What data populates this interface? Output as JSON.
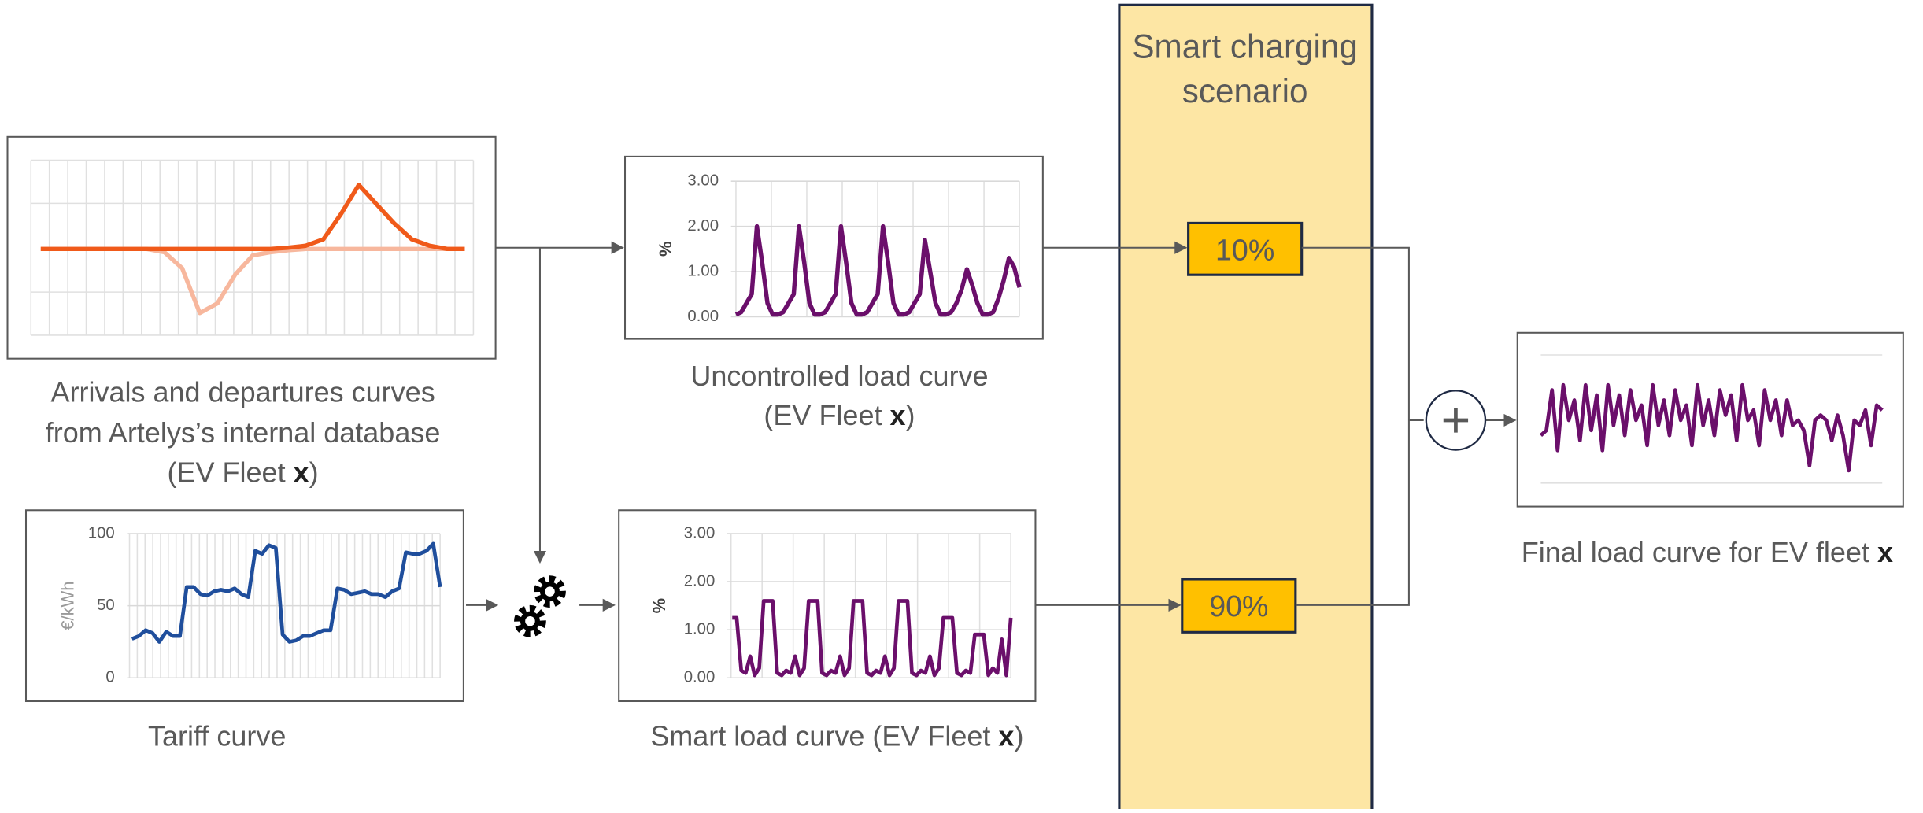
{
  "scenario": {
    "title_lines": [
      "Smart charging",
      "scenario"
    ],
    "shares": [
      "10%",
      "90%"
    ]
  },
  "labels": {
    "arrivals": {
      "lines": [
        "Arrivals and departures curves",
        "from Artelys’s internal database"
      ],
      "pre": "(EV Fleet ",
      "bold": "x",
      "post": ")"
    },
    "uncontrolled": {
      "line": "Uncontrolled load curve",
      "pre": "(EV Fleet ",
      "bold": "x",
      "post": ")"
    },
    "tariff": {
      "line": "Tariff curve"
    },
    "smart": {
      "pre": "Smart load curve (EV Fleet ",
      "bold": "x",
      "post": ")"
    },
    "final": {
      "pre": "Final load curve for EV fleet ",
      "bold": "x"
    }
  },
  "chart_data": [
    {
      "type": "line",
      "ylim": [
        -1,
        1
      ],
      "series": [
        {
          "color": "#f7b79d",
          "values": [
            0,
            0,
            0,
            0,
            0,
            0,
            0,
            -0.05,
            -0.3,
            -1,
            -0.85,
            -0.4,
            -0.1,
            -0.05,
            -0.02,
            0,
            0,
            0,
            0,
            0,
            0,
            0,
            0,
            0,
            0
          ]
        },
        {
          "color": "#f05a1a",
          "values": [
            0,
            0,
            0,
            0,
            0,
            0,
            0,
            0,
            0,
            0,
            0,
            0,
            0,
            0,
            0.02,
            0.05,
            0.15,
            0.55,
            1,
            0.7,
            0.4,
            0.15,
            0.05,
            0,
            0
          ]
        }
      ]
    },
    {
      "type": "line",
      "ylabel": "%",
      "ylim": [
        0,
        3
      ],
      "yticks": [
        {
          "value": 0,
          "label": "0.00"
        },
        {
          "value": 1,
          "label": "1.00"
        },
        {
          "value": 2,
          "label": "2.00"
        },
        {
          "value": 3,
          "label": "3.00"
        }
      ],
      "series": [
        {
          "color": "#6b0f6b",
          "values": [
            0.05,
            0.1,
            0.3,
            0.5,
            2.0,
            1.2,
            0.3,
            0.05,
            0.05,
            0.1,
            0.3,
            0.5,
            2.0,
            1.2,
            0.3,
            0.05,
            0.05,
            0.1,
            0.3,
            0.5,
            2.0,
            1.2,
            0.3,
            0.05,
            0.05,
            0.1,
            0.3,
            0.5,
            2.0,
            1.2,
            0.3,
            0.05,
            0.05,
            0.1,
            0.3,
            0.5,
            1.7,
            1.0,
            0.3,
            0.05,
            0.05,
            0.1,
            0.3,
            0.6,
            1.05,
            0.7,
            0.3,
            0.05,
            0.05,
            0.1,
            0.4,
            0.8,
            1.3,
            1.1,
            0.65
          ]
        }
      ]
    },
    {
      "type": "line",
      "ylabel": "€/kWh",
      "ylim": [
        0,
        100
      ],
      "yticks": [
        0,
        50,
        100
      ],
      "series": [
        {
          "color": "#1f4e9c",
          "values": [
            27,
            29,
            33,
            31,
            25,
            32,
            29,
            29,
            63,
            63,
            58,
            57,
            60,
            61,
            60,
            62,
            58,
            56,
            88,
            86,
            92,
            90,
            30,
            25,
            26,
            29,
            29,
            31,
            33,
            33,
            62,
            61,
            58,
            59,
            60,
            58,
            58,
            56,
            60,
            62,
            87,
            86,
            86,
            88,
            93,
            63
          ]
        }
      ]
    },
    {
      "type": "line",
      "ylabel": "%",
      "ylim": [
        0,
        3
      ],
      "yticks": [
        {
          "value": 0,
          "label": "0.00"
        },
        {
          "value": 1,
          "label": "1.00"
        },
        {
          "value": 2,
          "label": "2.00"
        },
        {
          "value": 3,
          "label": "3.00"
        }
      ],
      "series": [
        {
          "color": "#6b0f6b",
          "values": [
            1.25,
            1.25,
            0.15,
            0.1,
            0.45,
            0.05,
            0.2,
            1.6,
            1.6,
            1.6,
            0.1,
            0.05,
            0.15,
            0.1,
            0.45,
            0.05,
            0.2,
            1.6,
            1.6,
            1.6,
            0.1,
            0.05,
            0.15,
            0.1,
            0.45,
            0.05,
            0.2,
            1.6,
            1.6,
            1.6,
            0.1,
            0.05,
            0.15,
            0.1,
            0.45,
            0.05,
            0.2,
            1.6,
            1.6,
            1.6,
            0.1,
            0.05,
            0.15,
            0.1,
            0.45,
            0.05,
            0.2,
            1.25,
            1.25,
            1.25,
            0.1,
            0.05,
            0.15,
            0.1,
            0.9,
            0.9,
            0.9,
            0.05,
            0.2,
            0.1,
            0.8,
            0.05,
            1.25
          ]
        }
      ]
    },
    {
      "type": "line",
      "ylim": [
        0,
        1.2
      ],
      "series": [
        {
          "color": "#6b0f6b",
          "values": [
            0.45,
            0.5,
            0.9,
            0.3,
            0.95,
            0.6,
            0.8,
            0.4,
            0.95,
            0.5,
            0.85,
            0.3,
            0.95,
            0.55,
            0.85,
            0.45,
            0.9,
            0.6,
            0.75,
            0.35,
            0.95,
            0.55,
            0.8,
            0.45,
            0.9,
            0.6,
            0.75,
            0.35,
            0.95,
            0.55,
            0.8,
            0.45,
            0.9,
            0.65,
            0.85,
            0.4,
            0.95,
            0.6,
            0.7,
            0.35,
            0.9,
            0.6,
            0.8,
            0.45,
            0.8,
            0.55,
            0.6,
            0.5,
            0.15,
            0.6,
            0.65,
            0.6,
            0.4,
            0.65,
            0.45,
            0.1,
            0.6,
            0.55,
            0.7,
            0.35,
            0.75,
            0.7
          ]
        }
      ]
    }
  ]
}
